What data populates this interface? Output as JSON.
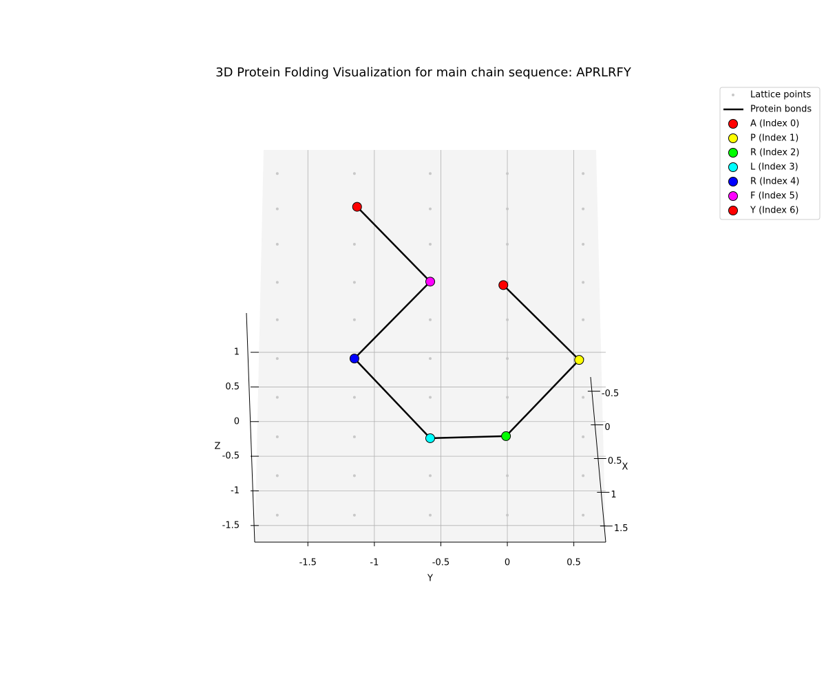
{
  "chart_data": {
    "type": "scatter3d",
    "title": "3D Protein Folding Visualization for main chain sequence: APRLRFY",
    "xlabel": "X",
    "ylabel": "Y",
    "zlabel": "Z",
    "xlim": [
      -0.71,
      1.74
    ],
    "xticks": [
      -0.5,
      0.0,
      0.5,
      1.0,
      1.5
    ],
    "ylim": [
      -1.9,
      0.74
    ],
    "yticks": [
      -1.5,
      -1.0,
      -0.5,
      0.0,
      0.5
    ],
    "zlim": [
      -1.74,
      3.92
    ],
    "zticks": [
      -1.5,
      -1.0,
      -0.5,
      0.0,
      0.5,
      1.0
    ],
    "grid": true,
    "legend": "upper right",
    "series": [
      {
        "name": "Lattice points",
        "kind": "dots",
        "color": "#c8c8c8",
        "y": [
          -1.73,
          -1.15,
          -0.58,
          0,
          0.57,
          -1.73,
          -1.15,
          -0.58,
          0,
          0.57,
          -1.73,
          -1.15,
          -0.58,
          0,
          0.57,
          -1.73,
          -1.15,
          -0.58,
          0,
          0.57,
          -1.73,
          -1.15,
          -0.58,
          0,
          0.57,
          -1.73,
          -1.15,
          -0.58,
          0,
          0.57,
          -1.73,
          -1.15,
          -0.58,
          0,
          0.57,
          -1.73,
          -1.15,
          -0.58,
          0,
          0.57,
          -1.73,
          -1.15,
          -0.58,
          0,
          0.57,
          -1.73,
          -1.15,
          -0.58,
          0,
          0.57
        ],
        "z": [
          3.58,
          3.58,
          3.58,
          3.58,
          3.58,
          3.07,
          3.07,
          3.07,
          3.07,
          3.07,
          2.56,
          2.56,
          2.56,
          2.56,
          2.56,
          2.01,
          2.01,
          2.01,
          2.01,
          2.01,
          1.47,
          1.47,
          1.47,
          1.47,
          1.47,
          0.91,
          0.91,
          0.91,
          0.91,
          0.91,
          0.35,
          0.35,
          0.35,
          0.35,
          0.35,
          -0.22,
          -0.22,
          -0.22,
          -0.22,
          -0.22,
          -0.78,
          -0.78,
          -0.78,
          -0.78,
          -0.78,
          -1.35,
          -1.35,
          -1.35,
          -1.35,
          -1.35
        ]
      },
      {
        "name": "Protein bonds",
        "kind": "line",
        "color": "#000000",
        "y": [
          -0.03,
          0.54,
          -0.01,
          -0.58,
          -1.15,
          -0.58,
          -1.13
        ],
        "z": [
          1.97,
          0.89,
          -0.21,
          -0.24,
          0.91,
          2.02,
          3.1
        ]
      },
      {
        "name": "A (Index 0)",
        "kind": "marker",
        "color": "#ff0000",
        "y": [
          -0.03
        ],
        "z": [
          1.97
        ]
      },
      {
        "name": "P (Index 1)",
        "kind": "marker",
        "color": "#ffff00",
        "y": [
          0.54
        ],
        "z": [
          0.89
        ]
      },
      {
        "name": "R (Index 2)",
        "kind": "marker",
        "color": "#00ff00",
        "y": [
          -0.01
        ],
        "z": [
          -0.21
        ]
      },
      {
        "name": "L (Index 3)",
        "kind": "marker",
        "color": "#00ffff",
        "y": [
          -0.58
        ],
        "z": [
          -0.24
        ]
      },
      {
        "name": "R (Index 4)",
        "kind": "marker",
        "color": "#0000ff",
        "y": [
          -1.15
        ],
        "z": [
          0.91
        ]
      },
      {
        "name": "F (Index 5)",
        "kind": "marker",
        "color": "#ff00ff",
        "y": [
          -0.58
        ],
        "z": [
          2.02
        ]
      },
      {
        "name": "Y (Index 6)",
        "kind": "marker",
        "color": "#ff0000",
        "y": [
          -1.13
        ],
        "z": [
          3.1
        ]
      }
    ]
  }
}
